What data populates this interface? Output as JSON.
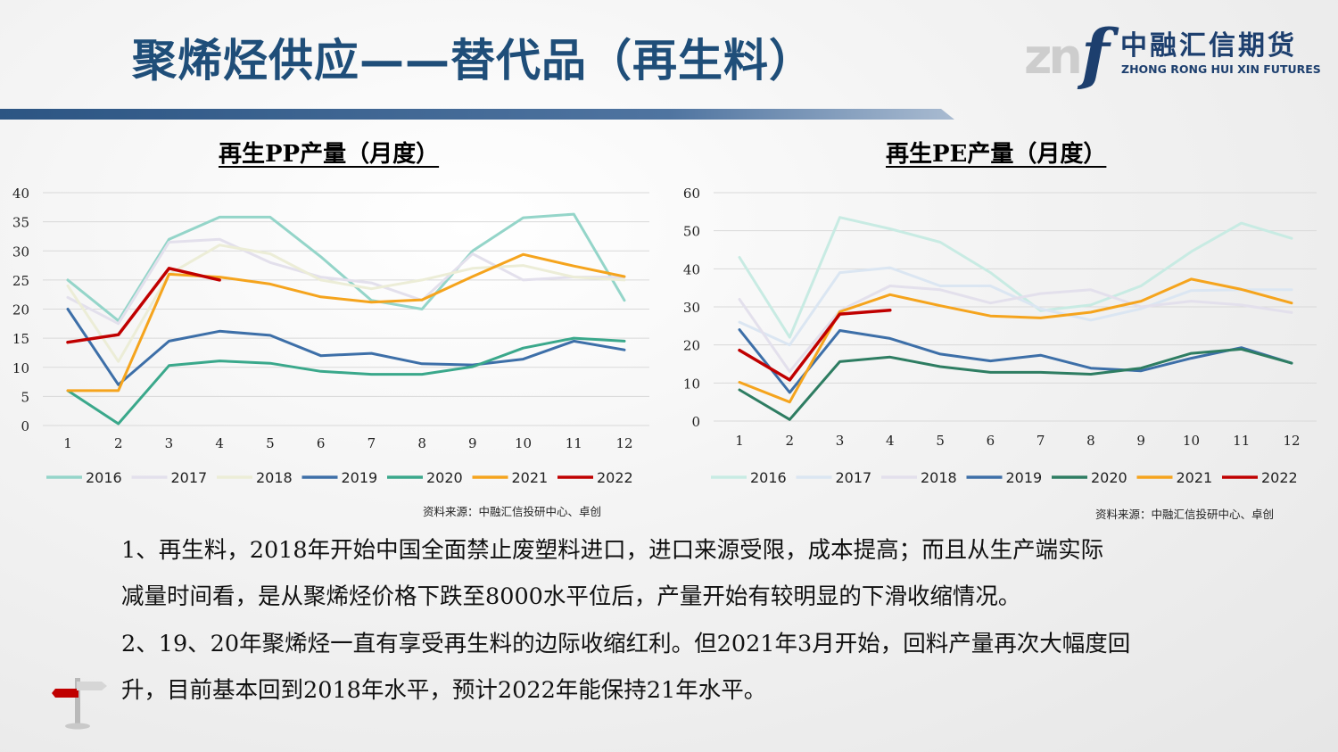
{
  "title": "聚烯烃供应——替代品（再生料）",
  "logo": {
    "mark_letters": "zn",
    "mark_f": "f",
    "name_cn": "中融汇信期货",
    "name_en": "ZHONG RONG HUI XIN FUTURES"
  },
  "colors": {
    "title": "#1f4e79",
    "y2016": "#94d5c9",
    "y2017": "#e3e0ec",
    "y2018": "#ecedd7",
    "y2019": "#3d6fa8",
    "y2020": "#3aa88b",
    "y2021": "#f5a41d",
    "y2022": "#c00000",
    "pe2016": "#c8ebe3",
    "pe2017": "#dbe6f2",
    "pe2020": "#2e7d62"
  },
  "source_text": "资料来源：中融汇信投研中心、卓创",
  "notes": [
    "1、再生料，2018年开始中国全面禁止废塑料进口，进口来源受限，成本提高；而且从生产端实际",
    "减量时间看，是从聚烯烃价格下跌至8000水平位后，产量开始有较明显的下滑收缩情况。",
    "2、19、20年聚烯烃一直有享受再生料的边际收缩红利。但2021年3月开始，回料产量再次大幅度回",
    "升，目前基本回到2018年水平，预计2022年能保持21年水平。"
  ],
  "chart_data": [
    {
      "type": "line",
      "title": "再生PP产量（月度）",
      "categories": [
        "1",
        "2",
        "3",
        "4",
        "5",
        "6",
        "7",
        "8",
        "9",
        "10",
        "11",
        "12"
      ],
      "ylim": [
        0,
        40
      ],
      "yticks": [
        "0",
        "5",
        "10",
        "15",
        "20",
        "25",
        "30",
        "35",
        "40"
      ],
      "grid": true,
      "legend_position": "bottom",
      "series": [
        {
          "name": "2016",
          "color": "#94d5c9",
          "values": [
            25,
            18,
            32,
            35.8,
            35.8,
            29,
            21.5,
            20,
            30,
            35.7,
            36.3,
            21.5
          ]
        },
        {
          "name": "2017",
          "color": "#e3e0ec",
          "values": [
            22,
            17.5,
            31.5,
            32,
            28,
            25.5,
            24.5,
            21.5,
            29.5,
            25,
            25.5,
            25.5
          ]
        },
        {
          "name": "2018",
          "color": "#ecedd7",
          "values": [
            24,
            11,
            26,
            31,
            29.5,
            25,
            23.5,
            25,
            27,
            27.5,
            25.5,
            25
          ]
        },
        {
          "name": "2019",
          "color": "#3d6fa8",
          "values": [
            20,
            7,
            14.5,
            16.2,
            15.5,
            12,
            12.4,
            10.6,
            10.4,
            11.4,
            14.5,
            13
          ]
        },
        {
          "name": "2020",
          "color": "#3aa88b",
          "values": [
            6,
            0.3,
            10.3,
            11.1,
            10.7,
            9.3,
            8.8,
            8.8,
            10.1,
            13.3,
            15,
            14.5
          ]
        },
        {
          "name": "2021",
          "color": "#f5a41d",
          "values": [
            6,
            6,
            26,
            25.5,
            24.3,
            22.1,
            21.2,
            21.6,
            25.6,
            29.4,
            27.4,
            25.6
          ]
        },
        {
          "name": "2022",
          "color": "#c00000",
          "values": [
            14.3,
            15.6,
            27,
            25,
            null,
            null,
            null,
            null,
            null,
            null,
            null,
            null
          ]
        }
      ]
    },
    {
      "type": "line",
      "title": "再生PE产量（月度）",
      "categories": [
        "1",
        "2",
        "3",
        "4",
        "5",
        "6",
        "7",
        "8",
        "9",
        "10",
        "11",
        "12"
      ],
      "ylim": [
        0,
        60
      ],
      "yticks": [
        "0",
        "10",
        "20",
        "30",
        "40",
        "50",
        "60"
      ],
      "grid": true,
      "legend_position": "bottom",
      "series": [
        {
          "name": "2016",
          "color": "#c8ebe3",
          "values": [
            43,
            22,
            53.5,
            50.5,
            47,
            39,
            29,
            30.5,
            35.5,
            44.5,
            52,
            48
          ]
        },
        {
          "name": "2017",
          "color": "#dbe6f2",
          "values": [
            26,
            20,
            39,
            40.3,
            35.5,
            35.5,
            29.5,
            26.5,
            29.5,
            34.3,
            34.5,
            34.5
          ]
        },
        {
          "name": "2018",
          "color": "#e3e0ec",
          "values": [
            32,
            13,
            29,
            35.5,
            34.5,
            31,
            33.5,
            34.5,
            30,
            31.5,
            30.5,
            28.5
          ]
        },
        {
          "name": "2019",
          "color": "#3d6fa8",
          "values": [
            24,
            7.5,
            23.8,
            21.7,
            17.6,
            15.8,
            17.3,
            13.9,
            13.2,
            16.5,
            19.3,
            15.2
          ]
        },
        {
          "name": "2020",
          "color": "#2e7d62",
          "values": [
            8.2,
            0.4,
            15.6,
            16.8,
            14.3,
            12.8,
            12.8,
            12.3,
            13.9,
            17.8,
            18.9,
            15.2
          ]
        },
        {
          "name": "2021",
          "color": "#f5a41d",
          "values": [
            10.2,
            5,
            28.7,
            33.2,
            30.3,
            27.6,
            27.1,
            28.6,
            31.5,
            37.3,
            34.6,
            31
          ]
        },
        {
          "name": "2022",
          "color": "#c00000",
          "values": [
            18.6,
            10.8,
            28.1,
            29.1,
            null,
            null,
            null,
            null,
            null,
            null,
            null,
            null
          ]
        }
      ]
    }
  ]
}
